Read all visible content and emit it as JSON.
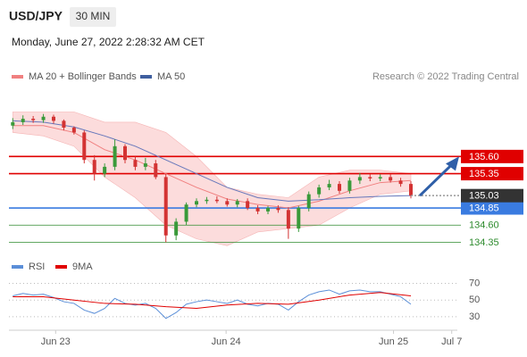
{
  "chart_data": {
    "type": "candlestick",
    "title": "USD/JPY",
    "timeframe": "30 MIN",
    "datetime": "Monday, June 27, 2022 2:28:32 AM CET",
    "copyright": "Research © 2022 Trading Central",
    "legend": [
      {
        "name": "MA 20 + Bollinger Bands",
        "color": "#f08080"
      },
      {
        "name": "MA 50",
        "color": "#3f5f9f"
      }
    ],
    "rsi_legend": [
      {
        "name": "RSI",
        "color": "#5b8fd8"
      },
      {
        "name": "9MA",
        "color": "#e00000"
      }
    ],
    "up_color": "#3a9a3a",
    "down_color": "#d33333",
    "open": [
      136.05,
      136.1,
      136.15,
      136.13,
      136.18,
      136.12,
      136.02,
      135.95,
      135.55,
      135.35,
      135.45,
      135.75,
      135.55,
      135.45,
      135.5,
      135.3,
      134.45,
      134.65,
      134.9,
      134.95,
      134.97,
      134.95,
      134.9,
      134.95,
      134.85,
      134.8,
      134.85,
      134.82,
      134.55,
      134.85,
      135.05,
      135.15,
      135.2,
      135.1,
      135.25,
      135.3,
      135.28,
      135.3,
      135.25,
      135.2
    ],
    "high": [
      136.16,
      136.2,
      136.19,
      136.22,
      136.21,
      136.14,
      136.04,
      135.98,
      135.62,
      135.5,
      135.85,
      135.78,
      135.6,
      135.58,
      135.55,
      135.35,
      134.7,
      134.93,
      134.99,
      135.01,
      135.02,
      134.99,
      134.98,
      134.99,
      134.89,
      134.88,
      134.89,
      134.86,
      134.88,
      135.09,
      135.19,
      135.26,
      135.24,
      135.29,
      135.36,
      135.34,
      135.34,
      135.34,
      135.29,
      135.24
    ],
    "low": [
      136.0,
      136.06,
      136.09,
      136.09,
      136.08,
      135.98,
      135.92,
      135.5,
      135.25,
      135.3,
      135.4,
      135.5,
      135.4,
      135.4,
      135.27,
      134.35,
      134.38,
      134.6,
      134.86,
      134.91,
      134.92,
      134.87,
      134.86,
      134.82,
      134.76,
      134.76,
      134.78,
      134.4,
      134.5,
      134.8,
      135.0,
      135.11,
      135.06,
      135.06,
      135.2,
      135.24,
      135.24,
      135.22,
      135.16,
      134.99
    ],
    "close": [
      136.1,
      136.15,
      136.13,
      136.18,
      136.12,
      136.02,
      135.95,
      135.55,
      135.35,
      135.45,
      135.75,
      135.55,
      135.45,
      135.5,
      135.3,
      134.45,
      134.65,
      134.9,
      134.95,
      134.97,
      134.95,
      134.9,
      134.95,
      134.85,
      134.8,
      134.85,
      134.82,
      134.55,
      134.85,
      135.05,
      135.15,
      135.2,
      135.1,
      135.25,
      135.3,
      135.28,
      135.3,
      135.25,
      135.2,
      135.03
    ],
    "indicator_x": [
      0,
      3,
      6,
      9,
      12,
      15,
      18,
      21,
      24,
      27,
      30,
      33,
      36,
      39
    ],
    "ma50": [
      136.12,
      136.1,
      136.03,
      135.9,
      135.75,
      135.55,
      135.35,
      135.15,
      135.0,
      134.95,
      134.97,
      135.0,
      135.02,
      135.03
    ],
    "ma20": [
      136.05,
      136.05,
      135.95,
      135.7,
      135.55,
      135.35,
      135.15,
      134.98,
      134.9,
      134.85,
      134.95,
      135.1,
      135.22,
      135.25
    ],
    "bb_upper": [
      136.25,
      136.25,
      136.25,
      136.1,
      136.1,
      135.95,
      135.6,
      135.15,
      135.05,
      135.0,
      135.3,
      135.4,
      135.4,
      135.35
    ],
    "bb_lower": [
      135.95,
      135.9,
      135.75,
      135.3,
      135.0,
      134.6,
      134.4,
      134.3,
      134.5,
      134.55,
      134.6,
      134.85,
      135.05,
      135.1
    ],
    "rsi": [
      55,
      58,
      56,
      57,
      53,
      48,
      46,
      38,
      34,
      40,
      52,
      46,
      44,
      46,
      40,
      28,
      35,
      45,
      48,
      50,
      48,
      46,
      50,
      45,
      43,
      46,
      45,
      38,
      48,
      56,
      60,
      62,
      57,
      61,
      62,
      60,
      60,
      57,
      54,
      45
    ],
    "rsi_ma": [
      54,
      54,
      50,
      46,
      45,
      42,
      40,
      44,
      46,
      45,
      50,
      56,
      59,
      55
    ],
    "levels": [
      {
        "value": 135.6,
        "label": "135.60",
        "color": "#e00000",
        "style": "box"
      },
      {
        "value": 135.35,
        "label": "135.35",
        "color": "#e00000",
        "style": "box"
      },
      {
        "value": 134.85,
        "label": "134.85",
        "color": "#3a7be0",
        "style": "box"
      },
      {
        "value": 134.6,
        "label": "134.60",
        "color": "#2e8b2e",
        "style": "text"
      },
      {
        "value": 134.35,
        "label": "134.35",
        "color": "#2e8b2e",
        "style": "text"
      }
    ],
    "last_price": 135.03,
    "ylim": [
      134.2,
      136.32
    ],
    "rsi_ylim": [
      16,
      78
    ],
    "rsi_yticks": [
      70,
      50,
      30
    ],
    "xlim": [
      -0.2,
      43.2
    ],
    "xticks": [
      {
        "value": 4.2,
        "label": "Jun 23"
      },
      {
        "value": 20.9,
        "label": "Jun 24"
      },
      {
        "value": 37.3,
        "label": "Jun 25"
      },
      {
        "value": 43,
        "label": "Jul 7"
      }
    ]
  }
}
